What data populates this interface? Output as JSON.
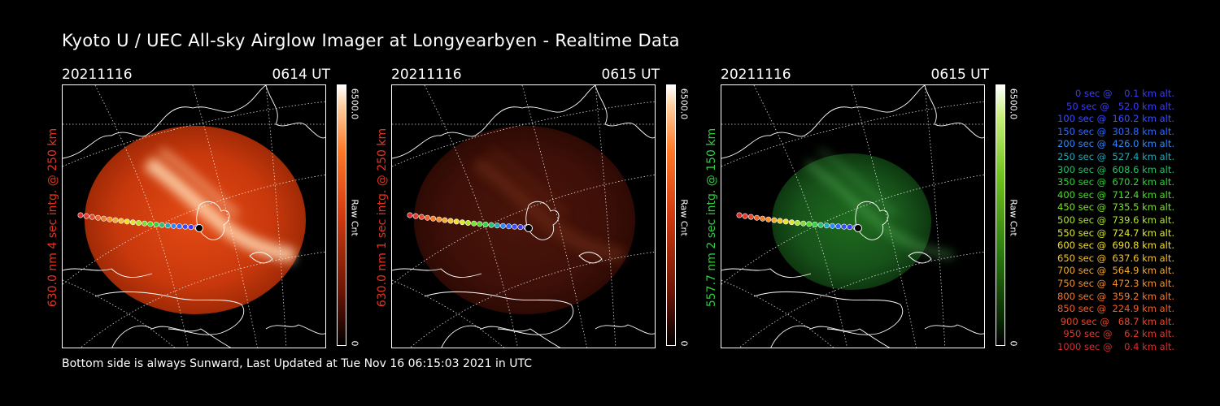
{
  "header": {
    "title": "Kyoto U / UEC All-sky Airglow Imager at Longyearbyen - Realtime Data"
  },
  "footer": {
    "text": "Bottom side is always Sunward, Last Updated at Tue Nov 16 06:15:03 2021 in UTC"
  },
  "panels": [
    {
      "date": "20211116",
      "time": "0614 UT",
      "side_label": "630.0 nm 4 sec intg. @ 250 km",
      "label_color": "#e8321e",
      "colorbar": {
        "max_label": "6500.0",
        "unit_label": "Raw Cnt",
        "min_label": "0",
        "colormap": "red"
      },
      "image_brightness": 1.0
    },
    {
      "date": "20211116",
      "time": "0615 UT",
      "side_label": "630.0 nm 1 sec intg. @ 250 km",
      "label_color": "#e8321e",
      "colorbar": {
        "max_label": "6500.0",
        "unit_label": "Raw Cnt",
        "min_label": "0",
        "colormap": "red"
      },
      "image_brightness": 0.3
    },
    {
      "date": "20211116",
      "time": "0615 UT",
      "side_label": "557.7 nm 2 sec intg. @ 150 km",
      "label_color": "#2ecc40",
      "colorbar": {
        "max_label": "6500.0",
        "unit_label": "Raw Cnt",
        "min_label": "0",
        "colormap": "green"
      },
      "image_brightness": 0.6
    }
  ],
  "legend": [
    {
      "text": "0 sec @    0.1 km alt.",
      "color": "#3a3aff"
    },
    {
      "text": "50 sec @   52.0 km alt.",
      "color": "#3a3aff"
    },
    {
      "text": "100 sec @  160.2 km alt.",
      "color": "#3a4cff"
    },
    {
      "text": "150 sec @  303.8 km alt.",
      "color": "#2f6aff"
    },
    {
      "text": "200 sec @  426.0 km alt.",
      "color": "#2f88ff"
    },
    {
      "text": "250 sec @  527.4 km alt.",
      "color": "#1faab8"
    },
    {
      "text": "300 sec @  608.6 km alt.",
      "color": "#22c26a"
    },
    {
      "text": "350 sec @  670.2 km alt.",
      "color": "#2ed23a"
    },
    {
      "text": "400 sec @  712.4 km alt.",
      "color": "#4cdc2a"
    },
    {
      "text": "450 sec @  735.5 km alt.",
      "color": "#7ee02a"
    },
    {
      "text": "500 sec @  739.6 km alt.",
      "color": "#b0e62a"
    },
    {
      "text": "550 sec @  724.7 km alt.",
      "color": "#dcea2a"
    },
    {
      "text": "600 sec @  690.8 km alt.",
      "color": "#f2e02a"
    },
    {
      "text": "650 sec @  637.6 km alt.",
      "color": "#f5c42a"
    },
    {
      "text": "700 sec @  564.9 km alt.",
      "color": "#f5aa2a"
    },
    {
      "text": "750 sec @  472.3 km alt.",
      "color": "#f5922a"
    },
    {
      "text": "800 sec @  359.2 km alt.",
      "color": "#f57a2a"
    },
    {
      "text": "850 sec @  224.9 km alt.",
      "color": "#f0602a"
    },
    {
      "text": "900 sec @   68.7 km alt.",
      "color": "#ea462a"
    },
    {
      "text": "950 sec @    6.2 km alt.",
      "color": "#e4362a"
    },
    {
      "text": "1000 sec @    0.4 km alt.",
      "color": "#e02a2a"
    }
  ]
}
